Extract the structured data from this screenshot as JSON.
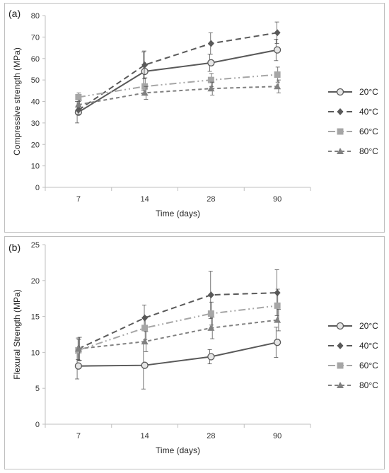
{
  "chart_data": [
    {
      "panel_label": "(a)",
      "type": "line",
      "categories": [
        "7",
        "14",
        "28",
        "90"
      ],
      "xlabel": "Time (days)",
      "ylabel": "Compressive strength (MPa)",
      "ylim": [
        0,
        80
      ],
      "yticks": [
        "0",
        "10",
        "20",
        "30",
        "40",
        "50",
        "60",
        "70",
        "80"
      ],
      "legend": "right",
      "grid": false,
      "series": [
        {
          "name": "20°C",
          "color": "#595959",
          "dash": "solid",
          "marker": "circle",
          "values": [
            35,
            54,
            58,
            64
          ],
          "err": [
            5,
            9,
            4,
            5
          ]
        },
        {
          "name": "40°C",
          "color": "#595959",
          "dash": "dash",
          "marker": "diamond",
          "values": [
            36,
            57,
            67,
            72
          ],
          "err": [
            2,
            6.5,
            5,
            5
          ]
        },
        {
          "name": "60°C",
          "color": "#a6a6a6",
          "dash": "dashdotdot",
          "marker": "square",
          "values": [
            42,
            47,
            50,
            52.5
          ],
          "err": [
            2,
            4,
            3,
            3.5
          ]
        },
        {
          "name": "80°C",
          "color": "#808080",
          "dash": "shortdash",
          "marker": "triangle",
          "values": [
            38.5,
            44,
            46,
            47
          ],
          "err": [
            2,
            3,
            3,
            3
          ]
        }
      ]
    },
    {
      "panel_label": "(b)",
      "type": "line",
      "categories": [
        "7",
        "14",
        "28",
        "90"
      ],
      "xlabel": "Time (days)",
      "ylabel": "Flexural Strength (MPa)",
      "ylim": [
        0,
        25
      ],
      "yticks": [
        "0",
        "5",
        "10",
        "15",
        "20",
        "25"
      ],
      "legend": "right",
      "grid": false,
      "series": [
        {
          "name": "20°C",
          "color": "#595959",
          "dash": "solid",
          "marker": "circle",
          "values": [
            8.1,
            8.2,
            9.4,
            11.4
          ],
          "err": [
            1.8,
            3.3,
            1.0,
            2.1
          ]
        },
        {
          "name": "40°C",
          "color": "#595959",
          "dash": "dash",
          "marker": "diamond",
          "values": [
            10.5,
            14.8,
            18.0,
            18.3
          ],
          "err": [
            1.5,
            1.8,
            3.3,
            3.2
          ]
        },
        {
          "name": "60°C",
          "color": "#a6a6a6",
          "dash": "dashdotdot",
          "marker": "square",
          "values": [
            10.3,
            13.4,
            15.4,
            16.5
          ],
          "err": [
            1.5,
            1.6,
            1.6,
            2.3
          ]
        },
        {
          "name": "80°C",
          "color": "#808080",
          "dash": "shortdash",
          "marker": "triangle",
          "values": [
            10.5,
            11.5,
            13.4,
            14.5
          ],
          "err": [
            1.6,
            1.4,
            1.5,
            1.5
          ]
        }
      ]
    }
  ]
}
